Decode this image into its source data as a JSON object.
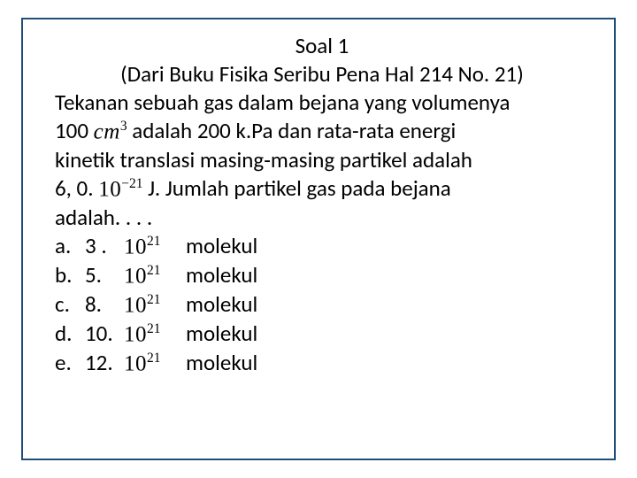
{
  "title": "Soal 1",
  "subtitle": "(Dari Buku Fisika Seribu Pena Hal 214  No. 21)",
  "lines": {
    "l1": "Tekanan sebuah gas dalam bejana yang volumenya",
    "l2_pre": "100  ",
    "l2_cm": "cm",
    "l2_cm_sup": "3",
    "l2_post": "   adalah 200 k.Pa dan rata-rata energi",
    "l3": "kinetik translasi masing-masing partikel adalah",
    "l4_pre": "6, 0. ",
    "l4_ten": "10",
    "l4_sup": "−21",
    "l4_post": "   J. Jumlah  partikel gas pada bejana",
    "l5": "adalah. . . ."
  },
  "exp_base": "10",
  "exp_sup": "21",
  "unit": "molekul",
  "options": [
    {
      "letter": "a.",
      "num": "3 ."
    },
    {
      "letter": "b.",
      "num": "5."
    },
    {
      "letter": "c.",
      "num": "8."
    },
    {
      "letter": "d.",
      "num": "10."
    },
    {
      "letter": "e.",
      "num": "12."
    }
  ]
}
